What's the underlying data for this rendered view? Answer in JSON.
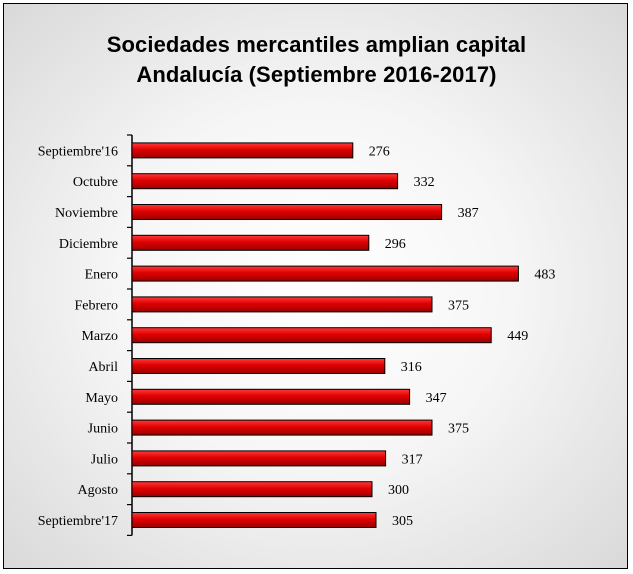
{
  "chart_data": {
    "type": "bar",
    "orientation": "horizontal",
    "title": "Sociedades mercantiles amplian capital",
    "subtitle": "Andalucía  (Septiembre 2016-2017)",
    "categories": [
      "Septiembre'16",
      "Octubre",
      "Noviembre",
      "Diciembre",
      "Enero",
      "Febrero",
      "Marzo",
      "Abril",
      "Mayo",
      "Junio",
      "Julio",
      "Agosto",
      "Septiembre'17"
    ],
    "values": [
      276,
      332,
      387,
      296,
      483,
      375,
      449,
      316,
      347,
      375,
      317,
      300,
      305
    ],
    "xlim": [
      0,
      540
    ],
    "grid": false,
    "legend": "none",
    "bar_color": "#e00000",
    "bar_edge_color": "#000000",
    "background_color": "#e8e8e8"
  }
}
